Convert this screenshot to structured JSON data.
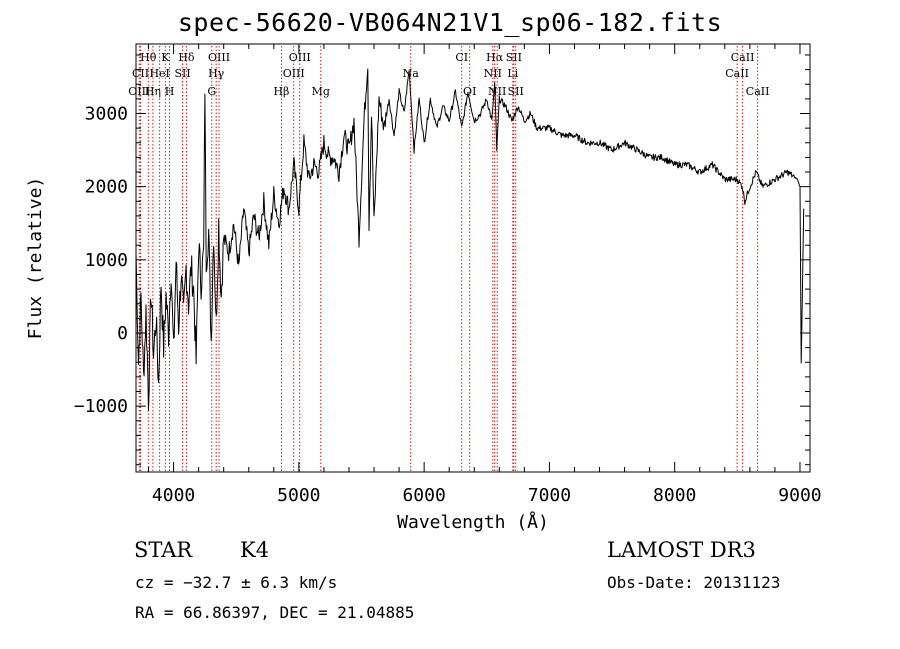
{
  "title": "spec-56620-VB064N21V1_sp06-182.fits",
  "info": {
    "class_name": "STAR",
    "subclass": "K4",
    "survey": "LAMOST DR3",
    "cz": "cz = −32.7 ± 6.3 km/s",
    "obs_date": "Obs-Date: 20131123",
    "radec": "RA =  66.86397, DEC =  21.04885"
  },
  "colors": {
    "spectrum": "#000000",
    "line_marker": "#cc0000",
    "axis": "#000000"
  },
  "chart_data": {
    "type": "line",
    "title": "spec-56620-VB064N21V1_sp06-182.fits",
    "xlabel": "Wavelength (Å)",
    "ylabel": "Flux (relative)",
    "xlim": [
      3700,
      9080
    ],
    "ylim": [
      -1900,
      3950
    ],
    "xticks": [
      4000,
      5000,
      6000,
      7000,
      8000,
      9000
    ],
    "xtick_labels": [
      "4000",
      "5000",
      "6000",
      "7000",
      "8000",
      "9000"
    ],
    "yticks": [
      -1000,
      0,
      1000,
      2000,
      3000
    ],
    "ytick_labels": [
      "−1000",
      "0",
      "1000",
      "2000",
      "3000"
    ],
    "x_minor_step": 200,
    "y_minor_step": 200,
    "series": [
      {
        "name": "flux",
        "x": [
          3700,
          3720,
          3740,
          3760,
          3780,
          3800,
          3820,
          3840,
          3860,
          3880,
          3900,
          3920,
          3940,
          3960,
          3980,
          4000,
          4020,
          4040,
          4060,
          4080,
          4100,
          4120,
          4140,
          4160,
          4180,
          4200,
          4220,
          4240,
          4250,
          4260,
          4280,
          4300,
          4320,
          4340,
          4360,
          4380,
          4400,
          4440,
          4480,
          4520,
          4560,
          4600,
          4640,
          4680,
          4720,
          4760,
          4800,
          4840,
          4880,
          4920,
          4960,
          5000,
          5040,
          5080,
          5120,
          5160,
          5200,
          5240,
          5280,
          5320,
          5360,
          5400,
          5440,
          5480,
          5520,
          5550,
          5560,
          5580,
          5600,
          5640,
          5680,
          5720,
          5760,
          5800,
          5840,
          5880,
          5920,
          5960,
          6000,
          6050,
          6100,
          6150,
          6200,
          6250,
          6300,
          6350,
          6400,
          6450,
          6500,
          6540,
          6563,
          6580,
          6600,
          6650,
          6700,
          6750,
          6800,
          6850,
          6900,
          7000,
          7100,
          7200,
          7300,
          7400,
          7500,
          7600,
          7700,
          7800,
          7900,
          8000,
          8100,
          8200,
          8300,
          8400,
          8500,
          8540,
          8560,
          8600,
          8650,
          8700,
          8800,
          8900,
          8980,
          9000,
          9010,
          9030
        ],
        "y": [
          1100,
          -400,
          500,
          -600,
          300,
          -900,
          600,
          -300,
          200,
          -700,
          700,
          -200,
          500,
          0,
          900,
          -300,
          1000,
          100,
          800,
          200,
          900,
          400,
          900,
          600,
          -400,
          1200,
          700,
          1100,
          3400,
          1000,
          1400,
          -100,
          1400,
          100,
          1500,
          500,
          1300,
          1100,
          1500,
          900,
          1700,
          1100,
          1600,
          1300,
          1800,
          1200,
          1900,
          1500,
          2000,
          1700,
          2300,
          1700,
          2600,
          2100,
          2300,
          2200,
          2600,
          2400,
          2400,
          2200,
          2700,
          2500,
          2900,
          1300,
          2900,
          3700,
          1500,
          3000,
          1500,
          3200,
          2800,
          3200,
          2700,
          3300,
          3000,
          3600,
          2500,
          3200,
          2600,
          3200,
          2800,
          3100,
          2900,
          3300,
          2800,
          3300,
          2900,
          3000,
          3200,
          2900,
          3400,
          2500,
          3200,
          3100,
          2900,
          3100,
          2900,
          3000,
          2800,
          2800,
          2700,
          2700,
          2600,
          2600,
          2500,
          2600,
          2500,
          2400,
          2400,
          2300,
          2300,
          2200,
          2300,
          2100,
          2100,
          2000,
          1800,
          2000,
          2200,
          2000,
          2100,
          2200,
          2100,
          2000,
          -400,
          1700
        ]
      }
    ],
    "line_markers": [
      {
        "label": "Hθ",
        "x": 3798,
        "row": 1
      },
      {
        "label": "CII",
        "x": 3736,
        "row": 2
      },
      {
        "label": "OIII",
        "x": 3726,
        "row": 3
      },
      {
        "label": "Hη",
        "x": 3835,
        "row": 3
      },
      {
        "label": "HeI",
        "x": 3889,
        "row": 2
      },
      {
        "label": "K",
        "x": 3934,
        "row": 1
      },
      {
        "label": "H",
        "x": 3968,
        "row": 3
      },
      {
        "label": "SII",
        "x": 4072,
        "row": 2
      },
      {
        "label": "Hδ",
        "x": 4102,
        "row": 1
      },
      {
        "label": "OIII",
        "x": 4363,
        "row": 1
      },
      {
        "label": "Hγ",
        "x": 4340,
        "row": 2
      },
      {
        "label": "G",
        "x": 4305,
        "row": 3
      },
      {
        "label": "Hβ",
        "x": 4861,
        "row": 3
      },
      {
        "label": "OIII",
        "x": 4959,
        "row": 2
      },
      {
        "label": "OIII",
        "x": 5007,
        "row": 1
      },
      {
        "label": "Mg",
        "x": 5175,
        "row": 3
      },
      {
        "label": "Na",
        "x": 5893,
        "row": 2
      },
      {
        "label": "CI",
        "x": 6300,
        "row": 1
      },
      {
        "label": "OI",
        "x": 6364,
        "row": 3
      },
      {
        "label": "Hα",
        "x": 6563,
        "row": 1
      },
      {
        "label": "NII",
        "x": 6548,
        "row": 2
      },
      {
        "label": "NII",
        "x": 6583,
        "row": 3
      },
      {
        "label": "SII",
        "x": 6716,
        "row": 1
      },
      {
        "label": "Li",
        "x": 6708,
        "row": 2
      },
      {
        "label": "SII",
        "x": 6731,
        "row": 3
      },
      {
        "label": "CaII",
        "x": 8542,
        "row": 1
      },
      {
        "label": "CaII",
        "x": 8498,
        "row": 2
      },
      {
        "label": "CaII",
        "x": 8662,
        "row": 3
      }
    ]
  }
}
